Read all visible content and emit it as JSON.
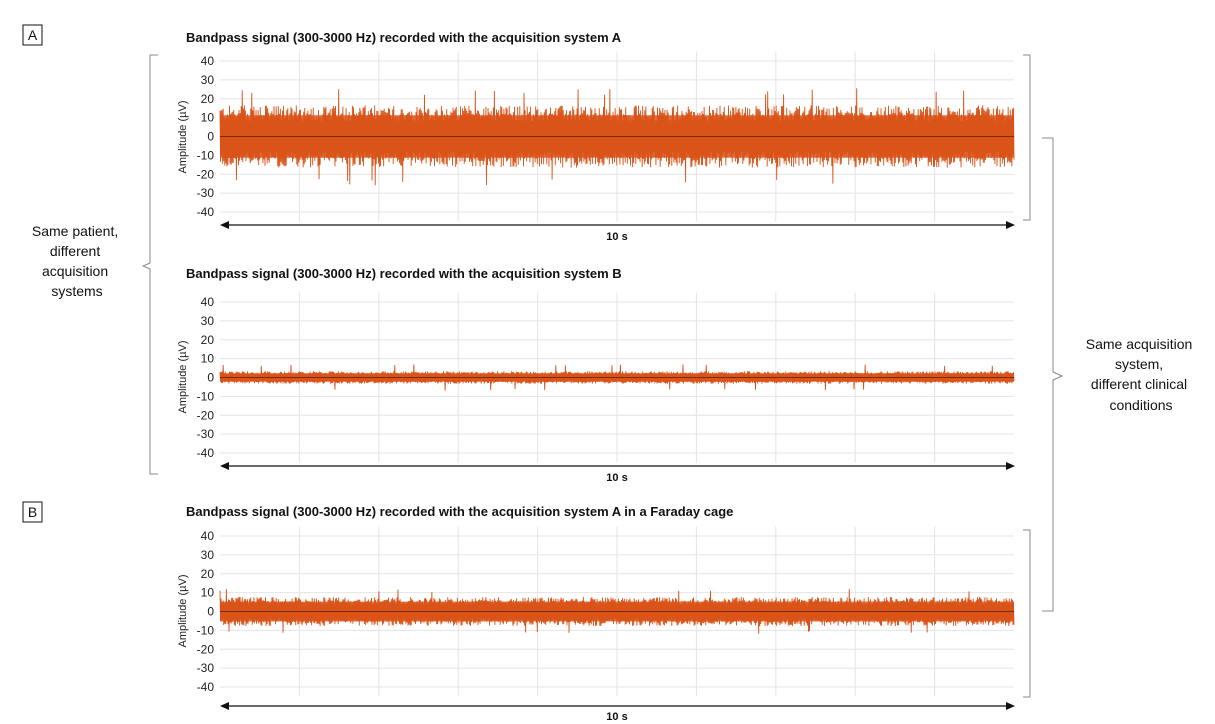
{
  "figure_labels": {
    "a": "A",
    "b": "B"
  },
  "colors": {
    "signal": "#d95319",
    "baseline": "#7a2a0a",
    "grid": "#e4e4e4",
    "ink": "#111111"
  },
  "side_notes": {
    "left_lines": [
      "Same patient,",
      "different",
      "acquisition",
      "systems"
    ],
    "right_lines": [
      "Same acquisition",
      "system,",
      "different clinical",
      "conditions"
    ]
  },
  "chart_data": [
    {
      "type": "line",
      "title": "Bandpass signal (300-3000 Hz) recorded with the acquisition system A",
      "ylabel": "Amplitude (µV)",
      "duration_label": "10 s",
      "ylim": [
        -45,
        45
      ],
      "yticks": [
        40,
        30,
        20,
        10,
        0,
        -10,
        -20,
        -30,
        -40
      ],
      "x_seconds": [
        0,
        10
      ],
      "series": [
        {
          "name": "",
          "color": "#d95319",
          "envelope_mean_uv": 15,
          "peak_uv": 26,
          "baseline_uv": 0
        }
      ],
      "grid": true
    },
    {
      "type": "line",
      "title": "Bandpass signal (300-3000 Hz) recorded with the acquisition system B",
      "ylabel": "Amplitude (µV)",
      "duration_label": "10 s",
      "ylim": [
        -45,
        45
      ],
      "yticks": [
        40,
        30,
        20,
        10,
        0,
        -10,
        -20,
        -30,
        -40
      ],
      "x_seconds": [
        0,
        10
      ],
      "series": [
        {
          "name": "",
          "color": "#d95319",
          "envelope_mean_uv": 3,
          "peak_uv": 7,
          "baseline_uv": 0
        }
      ],
      "grid": true
    },
    {
      "type": "line",
      "title": "Bandpass signal (300-3000 Hz) recorded with the acquisition system A in a Faraday cage",
      "ylabel": "Amplitude (µV)",
      "duration_label": "10 s",
      "ylim": [
        -45,
        45
      ],
      "yticks": [
        40,
        30,
        20,
        10,
        0,
        -10,
        -20,
        -30,
        -40
      ],
      "x_seconds": [
        0,
        10
      ],
      "series": [
        {
          "name": "",
          "color": "#d95319",
          "envelope_mean_uv": 7,
          "peak_uv": 12,
          "baseline_uv": 0
        }
      ],
      "grid": true
    }
  ]
}
